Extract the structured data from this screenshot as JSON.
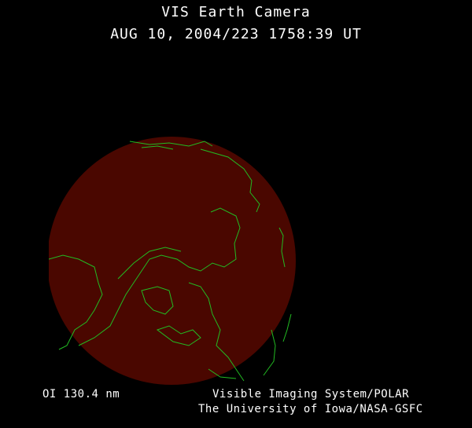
{
  "header": {
    "title": "VIS Earth Camera",
    "timestamp": "AUG 10, 2004/223 1758:39 UT"
  },
  "footer": {
    "wavelength": "OI  130.4 nm",
    "instrument": "Visible Imaging System/POLAR",
    "credit": "The University of Iowa/NASA-GSFC"
  },
  "colors": {
    "background": "#000000",
    "earth_disk": "#4a0700",
    "coastlines": "#22bb22",
    "text": "#ffffff"
  }
}
